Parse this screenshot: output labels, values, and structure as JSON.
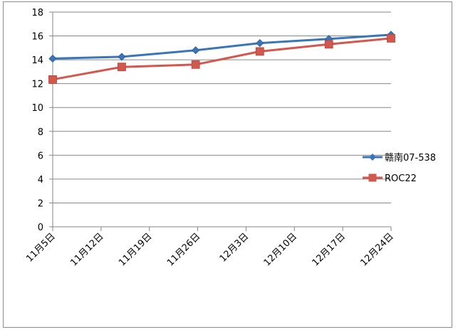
{
  "chart_data": {
    "type": "line",
    "title": "",
    "xlabel": "",
    "ylabel": "",
    "categories": [
      "11月5日",
      "11月12日",
      "11月19日",
      "11月26日",
      "12月3日",
      "12月10日",
      "12月17日",
      "12月24日"
    ],
    "x": [
      0,
      7,
      14,
      21,
      28,
      35,
      42,
      49
    ],
    "xlim": [
      0,
      49
    ],
    "ylim": [
      0,
      18
    ],
    "yticks": [
      0,
      2,
      4,
      6,
      8,
      10,
      12,
      14,
      16,
      18
    ],
    "grid": true,
    "legend": "right",
    "series": [
      {
        "name": "赣南07-538",
        "color": "#3a75b8",
        "marker": "diamond",
        "x": [
          0,
          10,
          20.7,
          30,
          40,
          49
        ],
        "values": [
          14.1,
          14.25,
          14.8,
          15.4,
          15.75,
          16.1
        ]
      },
      {
        "name": "ROC22",
        "color": "#d2574d",
        "marker": "square",
        "x": [
          0,
          10,
          20.7,
          30,
          40,
          49
        ],
        "values": [
          12.35,
          13.4,
          13.6,
          14.7,
          15.3,
          15.8
        ]
      }
    ]
  }
}
